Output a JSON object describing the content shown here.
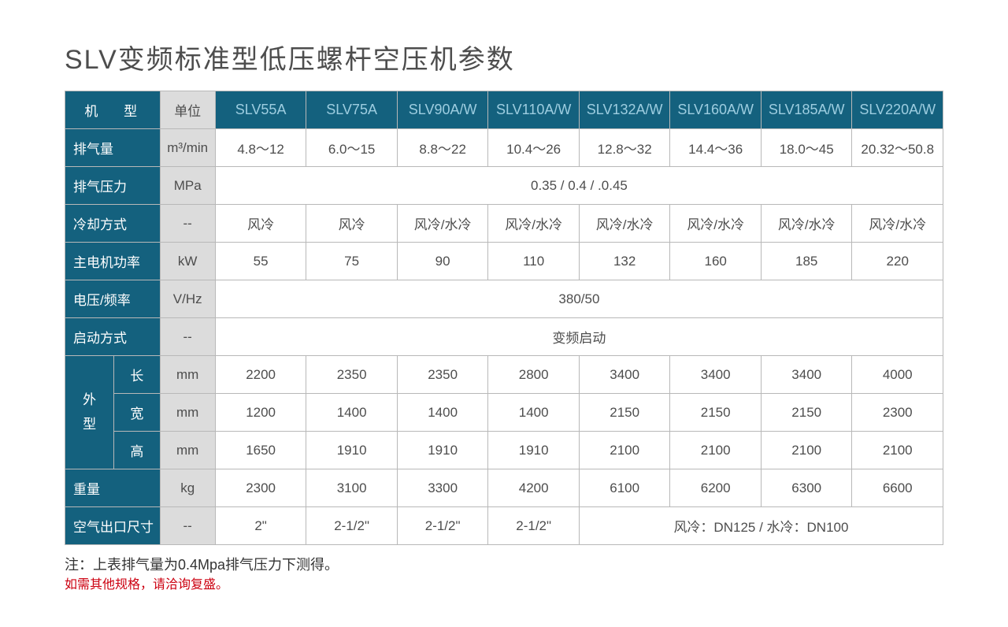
{
  "title": "SLV变频标准型低压螺杆空压机参数",
  "headers": {
    "machine": "机  型",
    "unit": "单位",
    "models": [
      "SLV55A",
      "SLV75A",
      "SLV90A/W",
      "SLV110A/W",
      "SLV132A/W",
      "SLV160A/W",
      "SLV185A/W",
      "SLV220A/W"
    ]
  },
  "rows": {
    "airflow": {
      "label": "排气量",
      "unit": "m³/min",
      "vals": [
        "4.8～12",
        "6.0～15",
        "8.8～22",
        "10.4～26",
        "12.8～32",
        "14.4～36",
        "18.0～45",
        "20.32～50.8"
      ]
    },
    "pressure": {
      "label": "排气压力",
      "unit": "MPa",
      "span": "0.35 / 0.4 / .0.45"
    },
    "cooling": {
      "label": "冷却方式",
      "unit": "--",
      "vals": [
        "风冷",
        "风冷",
        "风冷/水冷",
        "风冷/水冷",
        "风冷/水冷",
        "风冷/水冷",
        "风冷/水冷",
        "风冷/水冷"
      ]
    },
    "power": {
      "label": "主电机功率",
      "unit": "kW",
      "vals": [
        "55",
        "75",
        "90",
        "110",
        "132",
        "160",
        "185",
        "220"
      ]
    },
    "voltage": {
      "label": "电压/频率",
      "unit": "V/Hz",
      "span": "380/50"
    },
    "start": {
      "label": "启动方式",
      "unit": "--",
      "span": "变频启动"
    },
    "dims": {
      "group": "外型",
      "len": {
        "label": "长",
        "unit": "mm",
        "vals": [
          "2200",
          "2350",
          "2350",
          "2800",
          "3400",
          "3400",
          "3400",
          "4000"
        ]
      },
      "wid": {
        "label": "宽",
        "unit": "mm",
        "vals": [
          "1200",
          "1400",
          "1400",
          "1400",
          "2150",
          "2150",
          "2150",
          "2300"
        ]
      },
      "hei": {
        "label": "高",
        "unit": "mm",
        "vals": [
          "1650",
          "1910",
          "1910",
          "1910",
          "2100",
          "2100",
          "2100",
          "2100"
        ]
      }
    },
    "weight": {
      "label": "重量",
      "unit": "kg",
      "vals": [
        "2300",
        "3100",
        "3300",
        "4200",
        "6100",
        "6200",
        "6300",
        "6600"
      ]
    },
    "outlet": {
      "label": "空气出口尺寸",
      "unit": "--",
      "vals": [
        "2\"",
        "2-1/2\"",
        "2-1/2\"",
        "2-1/2\""
      ],
      "span": "风冷：DN125 / 水冷：DN100"
    }
  },
  "footer": {
    "note": "注：上表排气量为0.4Mpa排气压力下测得。",
    "contact": "如需其他规格，请洽询复盛。"
  },
  "colors": {
    "header_bg": "#14617e",
    "header_text": "#ffffff",
    "model_text": "#9dcde0",
    "unit_bg": "#dcdcdc",
    "border": "#b8b8b8",
    "body_text": "#4d4d4d",
    "red": "#cc0010"
  }
}
